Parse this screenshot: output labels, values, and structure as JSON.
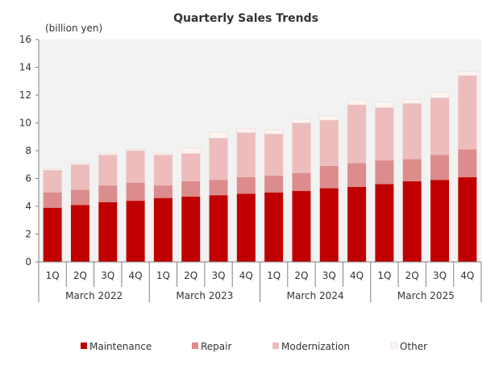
{
  "chart_data": {
    "type": "bar",
    "stacked": true,
    "title": "Quarterly Sales Trends",
    "unit_label": "(billion yen)",
    "ylim": [
      0,
      16
    ],
    "yticks": [
      0,
      2,
      4,
      6,
      8,
      10,
      12,
      14,
      16
    ],
    "grid": false,
    "legend_position": "bottom",
    "categories": [
      "1Q",
      "2Q",
      "3Q",
      "4Q",
      "1Q",
      "2Q",
      "3Q",
      "4Q",
      "1Q",
      "2Q",
      "3Q",
      "4Q",
      "1Q",
      "2Q",
      "3Q",
      "4Q"
    ],
    "groups": [
      {
        "label": "March 2022",
        "count": 4
      },
      {
        "label": "March 2023",
        "count": 4
      },
      {
        "label": "March 2024",
        "count": 4
      },
      {
        "label": "March 2025",
        "count": 4
      }
    ],
    "series": [
      {
        "name": "Maintenance",
        "color": "#c00000",
        "values": [
          3.9,
          4.1,
          4.3,
          4.4,
          4.6,
          4.7,
          4.8,
          4.9,
          5.0,
          5.1,
          5.3,
          5.4,
          5.6,
          5.8,
          5.9,
          6.1
        ]
      },
      {
        "name": "Repair",
        "color": "#dc8c8c",
        "values": [
          1.1,
          1.1,
          1.2,
          1.3,
          0.9,
          1.1,
          1.1,
          1.2,
          1.2,
          1.3,
          1.6,
          1.7,
          1.7,
          1.6,
          1.8,
          2.0
        ]
      },
      {
        "name": "Modernization",
        "color": "#edbcbc",
        "values": [
          1.6,
          1.8,
          2.2,
          2.3,
          2.2,
          2.0,
          3.0,
          3.2,
          3.0,
          3.6,
          3.3,
          4.2,
          3.8,
          4.0,
          4.1,
          5.3
        ]
      },
      {
        "name": "Other",
        "color": "#fdf4f0",
        "values": [
          0.1,
          0.1,
          0.1,
          0.1,
          0.1,
          0.4,
          0.4,
          0.3,
          0.3,
          0.3,
          0.3,
          0.4,
          0.4,
          0.3,
          0.4,
          0.3
        ]
      }
    ]
  }
}
